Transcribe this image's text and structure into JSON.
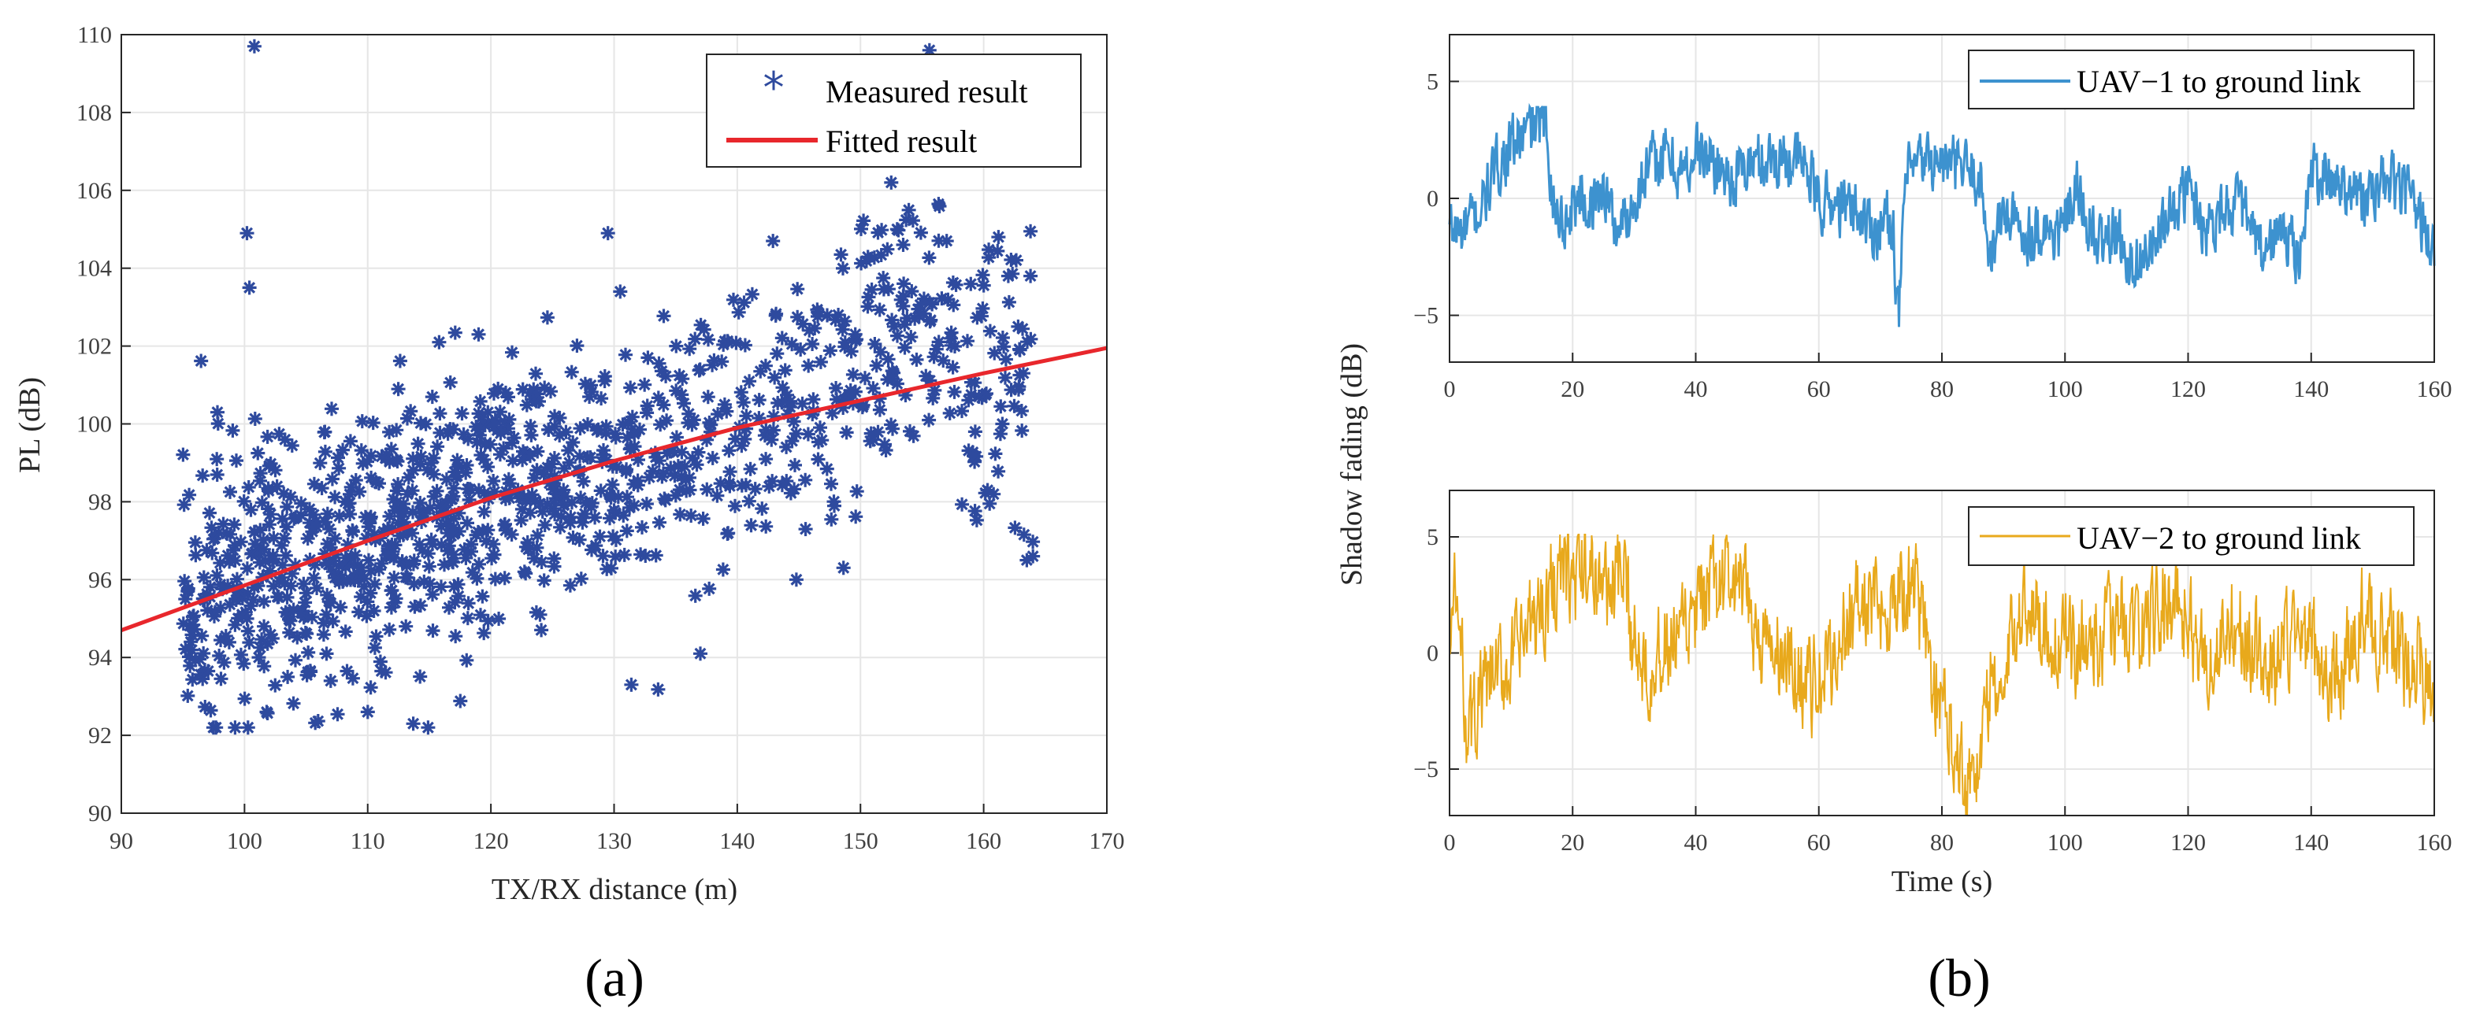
{
  "chart_data": [
    {
      "type": "scatter",
      "title": "",
      "xlabel": "TX/RX distance (m)",
      "ylabel": "PL (dB)",
      "xlim": [
        90,
        170
      ],
      "ylim": [
        90,
        110
      ],
      "xticks": [
        "90",
        "100",
        "110",
        "120",
        "130",
        "140",
        "150",
        "160",
        "170"
      ],
      "yticks": [
        "90",
        "92",
        "94",
        "96",
        "98",
        "100",
        "102",
        "104",
        "106",
        "108",
        "110"
      ],
      "grid": true,
      "legend_position": "top-right",
      "series": [
        {
          "name": "Measured result",
          "kind": "scatter",
          "color": "#2e4a9e",
          "sample_points": [
            [
              95.2,
              95.5
            ],
            [
              97.8,
              100.3
            ],
            [
              100.2,
              104.9
            ],
            [
              100.4,
              103.5
            ],
            [
              100.8,
              109.7
            ],
            [
              101.8,
              92.6
            ],
            [
              103.5,
              93.5
            ],
            [
              107.0,
              93.4
            ],
            [
              110.0,
              92.6
            ],
            [
              113.7,
              92.3
            ],
            [
              115.8,
              102.1
            ],
            [
              119.0,
              102.3
            ],
            [
              129.5,
              104.9
            ],
            [
              130.5,
              103.4
            ],
            [
              131.4,
              93.3
            ],
            [
              137.0,
              94.1
            ],
            [
              142.9,
              104.7
            ],
            [
              144.8,
              96.0
            ],
            [
              148.2,
              102.8
            ],
            [
              152.5,
              106.2
            ],
            [
              155.6,
              109.6
            ],
            [
              157.0,
              104.7
            ],
            [
              161.2,
              104.8
            ],
            [
              162.0,
              103.8
            ],
            [
              162.8,
              102.5
            ],
            [
              163.5,
              96.5
            ],
            [
              164.0,
              96.6
            ]
          ],
          "point_count_generated": 1100
        },
        {
          "name": "Fitted result",
          "kind": "line",
          "color": "#e8272c",
          "x": [
            90,
            100,
            110,
            120,
            130,
            140,
            150,
            160,
            170
          ],
          "y": [
            94.7,
            95.85,
            97.0,
            98.1,
            99.05,
            99.9,
            100.6,
            101.3,
            101.95
          ]
        }
      ]
    },
    {
      "type": "line",
      "title": "",
      "xlabel": "",
      "ylabel": "",
      "xlim": [
        0,
        160
      ],
      "ylim": [
        -7,
        7
      ],
      "xticks": [
        "0",
        "20",
        "40",
        "60",
        "80",
        "100",
        "120",
        "140",
        "160"
      ],
      "yticks": [
        "-5",
        "0",
        "5"
      ],
      "grid": true,
      "legend_position": "top-right",
      "series": [
        {
          "name": "UAV−1 to ground link",
          "color": "#3d92cf",
          "anchors_t": [
            0,
            2,
            5,
            8,
            10,
            13,
            15,
            16,
            17,
            19,
            21,
            23,
            25,
            27,
            29,
            32,
            35,
            38,
            40,
            43,
            46,
            49,
            52,
            55,
            58,
            60,
            63,
            66,
            69,
            72,
            73,
            74,
            77,
            80,
            83,
            86,
            88,
            90,
            93,
            96,
            99,
            102,
            105,
            108,
            111,
            114,
            117,
            120,
            123,
            126,
            129,
            132,
            135,
            138,
            140,
            143,
            146,
            149,
            152,
            155,
            158,
            160
          ],
          "anchors_v": [
            -1.2,
            -1.5,
            -0.5,
            1.5,
            2.2,
            2.9,
            3.4,
            2.5,
            -0.5,
            -1.0,
            0.3,
            -0.5,
            0.6,
            -1.3,
            -0.7,
            1.2,
            1.9,
            1.0,
            2.0,
            1.5,
            0.8,
            1.5,
            1.7,
            1.8,
            1.4,
            -0.2,
            -0.3,
            -0.5,
            -1.3,
            -0.8,
            -5.5,
            0.8,
            1.6,
            1.5,
            1.3,
            1.0,
            -2.5,
            -0.5,
            -1.5,
            -1.2,
            -1.6,
            0.3,
            -2.0,
            -1.5,
            -2.8,
            -2.2,
            -0.8,
            0.5,
            -1.3,
            -0.2,
            -0.5,
            -2.6,
            -1.3,
            -2.5,
            1.2,
            0.7,
            0.8,
            -0.3,
            0.8,
            0.3,
            -1.0,
            -2.5
          ]
        },
        {
          "name": "UAV−2 to ground link",
          "color": "#e8a91c",
          "anchors_t": [
            0,
            1,
            3,
            5,
            7,
            10,
            13,
            16,
            18,
            20,
            22,
            24,
            26,
            28,
            30,
            33,
            36,
            39,
            42,
            45,
            48,
            51,
            54,
            57,
            60,
            62,
            64,
            66,
            68,
            70,
            73,
            76,
            78,
            80,
            82,
            84,
            86,
            88,
            90,
            92,
            94,
            97,
            100,
            103,
            106,
            109,
            112,
            115,
            118,
            121,
            124,
            127,
            130,
            133,
            136,
            139,
            142,
            145,
            148,
            151,
            154,
            157,
            160
          ],
          "anchors_v": [
            1.0,
            2.5,
            -3.5,
            -2.0,
            -1.2,
            -0.5,
            1.0,
            2.5,
            3.5,
            3.0,
            3.6,
            3.2,
            2.8,
            3.3,
            0.5,
            -0.5,
            0.3,
            1.0,
            2.5,
            3.2,
            2.3,
            0.2,
            -0.3,
            -1.0,
            -1.5,
            -0.5,
            1.0,
            2.0,
            2.2,
            1.8,
            2.7,
            2.5,
            -0.5,
            -2.5,
            -3.5,
            -5.5,
            -4.8,
            -1.0,
            -2.0,
            1.5,
            2.3,
            1.0,
            0.2,
            0.5,
            0.6,
            1.5,
            0.8,
            1.8,
            2.8,
            0.5,
            -0.5,
            1.5,
            0.5,
            -1.0,
            0.6,
            0.8,
            -0.7,
            -1.0,
            1.6,
            1.0,
            0.0,
            -0.5,
            -1.5
          ]
        }
      ]
    }
  ],
  "shared": {
    "ylabel_b": "Shadow fading (dB)",
    "xlabel_b": "Time (s)"
  },
  "panel_labels": [
    "(a)",
    "(b)"
  ],
  "colors": {
    "axis": "#262626",
    "grid": "#e6e6e6"
  }
}
